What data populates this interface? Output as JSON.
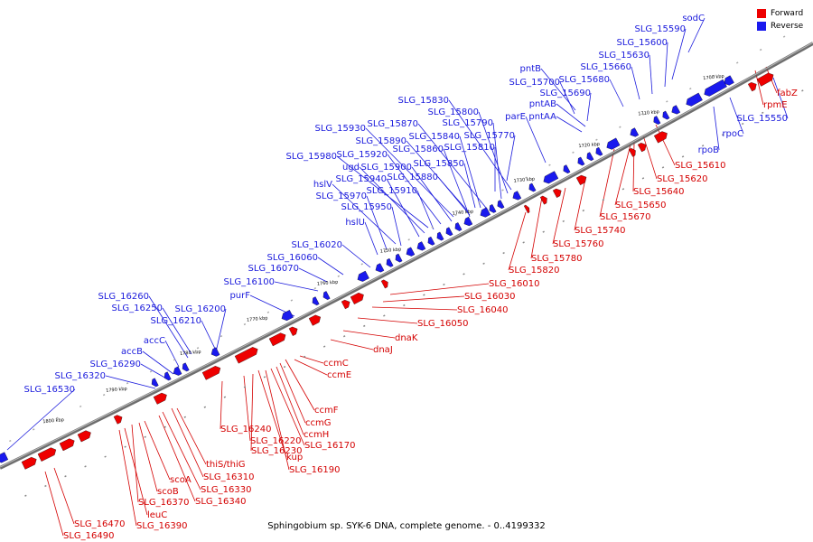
{
  "legend": {
    "forward": {
      "label": "Forward",
      "color": "#ee0000"
    },
    "reverse": {
      "label": "Reverse",
      "color": "#1a1aee"
    }
  },
  "caption": "Sphingobium sp. SYK-6 DNA, complete genome. - 0..4199332",
  "ticks": [
    "1700 kbp",
    "1710 kbp",
    "1720 kbp",
    "1730 kbp",
    "1740 kbp",
    "1750 kbp",
    "1760 kbp",
    "1770 kbp",
    "1780 kbp",
    "1790 kbp",
    "1800 kbp"
  ],
  "reverse_labels": [
    "sodC",
    "SLG_15590",
    "SLG_15600",
    "SLG_15630",
    "SLG_15660",
    "SLG_15680",
    "pntB",
    "SLG_15700",
    "SLG_15690",
    "pntAB",
    "parE",
    "pntAA",
    "SLG_15830",
    "SLG_15800",
    "SLG_15790",
    "SLG_15770",
    "SLG_15870",
    "SLG_15840",
    "SLG_15930",
    "SLG_15890",
    "SLG_15860",
    "SLG_15810",
    "SLG_15980",
    "SLG_15920",
    "ugd",
    "SLG_15900",
    "SLG_15850",
    "hslV",
    "SLG_15940",
    "SLG_15880",
    "SLG_15970",
    "SLG_15910",
    "SLG_15950",
    "hslU",
    "SLG_16020",
    "SLG_16060",
    "SLG_16070",
    "SLG_16100",
    "purF",
    "SLG_16260",
    "SLG_16250",
    "SLG_16200",
    "SLG_16210",
    "accC",
    "accB",
    "SLG_16290",
    "SLG_16320",
    "SLG_16530",
    "rpoC",
    "SLG_15550",
    "rpoB"
  ],
  "forward_labels": [
    "fabZ",
    "rpmE",
    "SLG_15610",
    "SLG_15620",
    "SLG_15640",
    "SLG_15650",
    "SLG_15670",
    "SLG_15740",
    "SLG_15760",
    "SLG_15780",
    "SLG_15820",
    "SLG_16010",
    "SLG_16030",
    "SLG_16040",
    "SLG_16050",
    "dnaK",
    "dnaJ",
    "ccmC",
    "ccmE",
    "ccmF",
    "ccmG",
    "ccmH",
    "SLG_16170",
    "SLG_16190",
    "kup",
    "SLG_16230",
    "SLG_16220",
    "SLG_16240",
    "thiS/thiG",
    "SLG_16310",
    "SLG_16330",
    "SLG_16340",
    "scoA",
    "scoB",
    "SLG_16370",
    "leuC",
    "SLG_16390",
    "SLG_16470",
    "SLG_16490"
  ]
}
